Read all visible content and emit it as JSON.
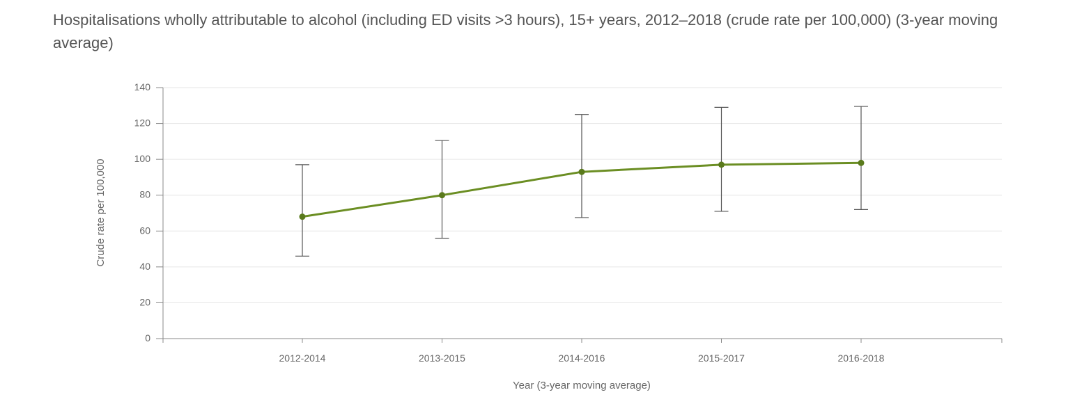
{
  "title": "Hospitalisations wholly attributable to alcohol (including ED visits >3 hours), 15+ years, 2012–2018 (crude rate per 100,000) (3-year moving average)",
  "colors": {
    "line": "#6b8e23",
    "marker": "#5a7a1c",
    "error_bar": "#555555",
    "grid": "#e6e6e6",
    "axis": "#888888"
  },
  "chart_data": {
    "type": "line",
    "xlabel": "Year (3-year moving average)",
    "ylabel": "Crude rate per 100,000",
    "ylim": [
      0,
      140
    ],
    "yticks": [
      0,
      20,
      40,
      60,
      80,
      100,
      120,
      140
    ],
    "grid": true,
    "categories": [
      "2012-2014",
      "2013-2015",
      "2014-2016",
      "2015-2017",
      "2016-2018"
    ],
    "series": [
      {
        "values": [
          68,
          80,
          93,
          97,
          98
        ],
        "lower": [
          46,
          56,
          67.5,
          71,
          72
        ],
        "upper": [
          97,
          110.5,
          125,
          129,
          129.5
        ]
      }
    ]
  }
}
